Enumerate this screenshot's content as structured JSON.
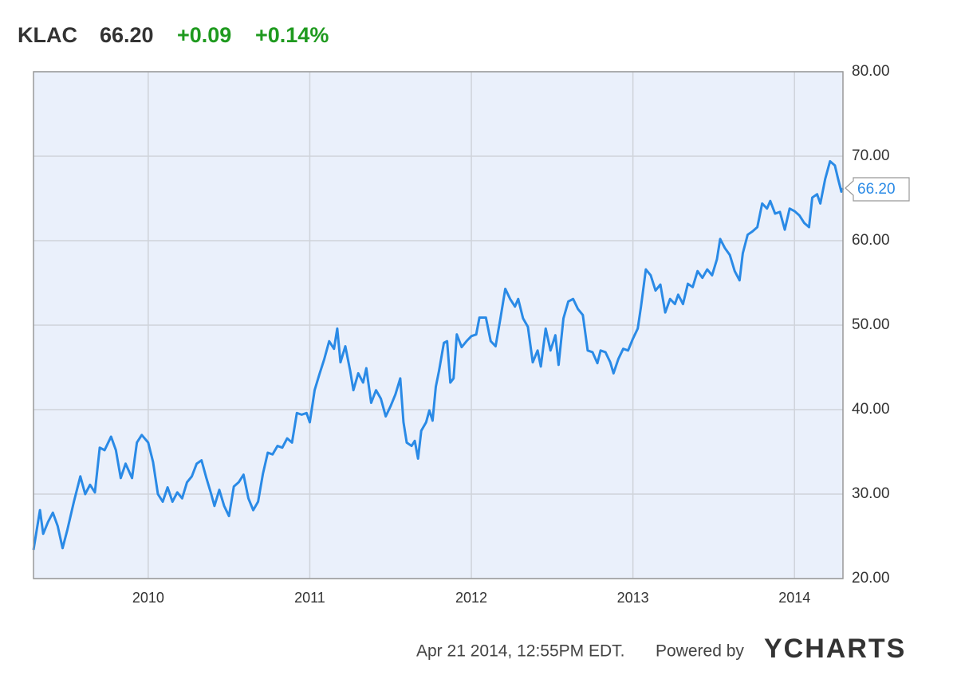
{
  "header": {
    "ticker": "KLAC",
    "price": "66.20",
    "change": "+0.09",
    "change_pct": "+0.14%"
  },
  "chart_data": {
    "type": "line",
    "x": [
      2009.29,
      2009.33,
      2009.35,
      2009.38,
      2009.41,
      2009.44,
      2009.47,
      2009.5,
      2009.54,
      2009.58,
      2009.61,
      2009.64,
      2009.67,
      2009.7,
      2009.73,
      2009.77,
      2009.8,
      2009.83,
      2009.86,
      2009.9,
      2009.93,
      2009.96,
      2010.0,
      2010.03,
      2010.06,
      2010.09,
      2010.12,
      2010.15,
      2010.18,
      2010.21,
      2010.24,
      2010.27,
      2010.3,
      2010.33,
      2010.36,
      2010.39,
      2010.41,
      2010.44,
      2010.47,
      2010.5,
      2010.53,
      2010.56,
      2010.59,
      2010.62,
      2010.65,
      2010.68,
      2010.71,
      2010.74,
      2010.77,
      2010.8,
      2010.83,
      2010.86,
      2010.89,
      2010.92,
      2010.95,
      2010.98,
      2011.0,
      2011.03,
      2011.06,
      2011.09,
      2011.12,
      2011.15,
      2011.17,
      2011.19,
      2011.22,
      2011.25,
      2011.27,
      2011.3,
      2011.33,
      2011.35,
      2011.38,
      2011.41,
      2011.44,
      2011.47,
      2011.5,
      2011.53,
      2011.56,
      2011.58,
      2011.6,
      2011.63,
      2011.65,
      2011.67,
      2011.69,
      2011.72,
      2011.74,
      2011.76,
      2011.78,
      2011.8,
      2011.83,
      2011.85,
      2011.87,
      2011.89,
      2011.91,
      2011.94,
      2011.97,
      2012.0,
      2012.03,
      2012.05,
      2012.09,
      2012.12,
      2012.15,
      2012.18,
      2012.21,
      2012.24,
      2012.27,
      2012.29,
      2012.32,
      2012.35,
      2012.38,
      2012.41,
      2012.43,
      2012.46,
      2012.49,
      2012.52,
      2012.54,
      2012.57,
      2012.6,
      2012.63,
      2012.66,
      2012.69,
      2012.72,
      2012.75,
      2012.78,
      2012.8,
      2012.83,
      2012.86,
      2012.88,
      2012.91,
      2012.94,
      2012.97,
      2013.0,
      2013.03,
      2013.05,
      2013.08,
      2013.11,
      2013.14,
      2013.17,
      2013.2,
      2013.23,
      2013.26,
      2013.28,
      2013.31,
      2013.34,
      2013.37,
      2013.4,
      2013.43,
      2013.46,
      2013.49,
      2013.52,
      2013.54,
      2013.57,
      2013.6,
      2013.63,
      2013.66,
      2013.68,
      2013.71,
      2013.74,
      2013.77,
      2013.8,
      2013.83,
      2013.85,
      2013.88,
      2013.91,
      2013.94,
      2013.97,
      2014.0,
      2014.03,
      2014.06,
      2014.09,
      2014.11,
      2014.14,
      2014.16,
      2014.19,
      2014.22,
      2014.25,
      2014.27,
      2014.29,
      2014.3
    ],
    "series": [
      {
        "name": "KLAC",
        "color": "#2a8ae6",
        "values": [
          23.4,
          28.1,
          25.3,
          26.7,
          27.8,
          26.2,
          23.6,
          25.8,
          29.1,
          32.1,
          30.0,
          31.1,
          30.2,
          35.5,
          35.2,
          36.8,
          35.2,
          31.9,
          33.6,
          31.9,
          36.1,
          37.0,
          36.1,
          33.8,
          30.0,
          29.1,
          30.8,
          29.1,
          30.2,
          29.5,
          31.4,
          32.1,
          33.6,
          34.0,
          31.9,
          30.0,
          28.6,
          30.5,
          28.6,
          27.4,
          30.9,
          31.4,
          32.3,
          29.5,
          28.1,
          29.1,
          32.4,
          34.9,
          34.7,
          35.7,
          35.5,
          36.6,
          36.1,
          39.6,
          39.4,
          39.6,
          38.5,
          42.3,
          44.2,
          46.0,
          48.1,
          47.2,
          49.6,
          45.6,
          47.5,
          44.6,
          42.3,
          44.3,
          43.2,
          44.9,
          40.8,
          42.3,
          41.3,
          39.2,
          40.4,
          41.8,
          43.7,
          38.5,
          36.1,
          35.7,
          36.3,
          34.2,
          37.5,
          38.5,
          39.9,
          38.7,
          42.7,
          44.6,
          47.9,
          48.1,
          43.2,
          43.7,
          48.9,
          47.4,
          48.1,
          48.7,
          48.9,
          50.9,
          50.9,
          48.1,
          47.5,
          50.8,
          54.3,
          53.1,
          52.2,
          53.1,
          50.8,
          49.8,
          45.6,
          47.0,
          45.1,
          49.6,
          47.0,
          48.8,
          45.3,
          50.8,
          52.8,
          53.1,
          51.9,
          51.2,
          47.0,
          46.8,
          45.5,
          47.0,
          46.8,
          45.6,
          44.3,
          46.0,
          47.2,
          47.0,
          48.4,
          49.6,
          52.2,
          56.6,
          55.9,
          54.1,
          54.8,
          51.5,
          53.1,
          52.5,
          53.6,
          52.5,
          54.9,
          54.5,
          56.4,
          55.6,
          56.6,
          55.9,
          57.8,
          60.2,
          59.1,
          58.3,
          56.4,
          55.3,
          58.5,
          60.7,
          61.1,
          61.6,
          64.4,
          63.8,
          64.7,
          63.2,
          63.4,
          61.3,
          63.8,
          63.5,
          63.0,
          62.1,
          61.6,
          65.1,
          65.5,
          64.4,
          67.3,
          69.4,
          68.9,
          67.3,
          65.8,
          66.2
        ]
      }
    ],
    "last_value_label": "66.20",
    "xlim": [
      2009.29,
      2014.3
    ],
    "xticks": [
      2010,
      2011,
      2012,
      2013,
      2014
    ],
    "ylim": [
      20,
      80
    ],
    "yticks": [
      {
        "value": 20,
        "label": "20.00"
      },
      {
        "value": 30,
        "label": "30.00"
      },
      {
        "value": 40,
        "label": "40.00"
      },
      {
        "value": 50,
        "label": "50.00"
      },
      {
        "value": 60,
        "label": "60.00"
      },
      {
        "value": 70,
        "label": "70.00"
      },
      {
        "value": 80,
        "label": "80.00"
      }
    ],
    "grid": true
  },
  "footer": {
    "timestamp": "Apr 21 2014, 12:55PM EDT.",
    "powered_by": "Powered by",
    "brand": "YCHARTS"
  }
}
